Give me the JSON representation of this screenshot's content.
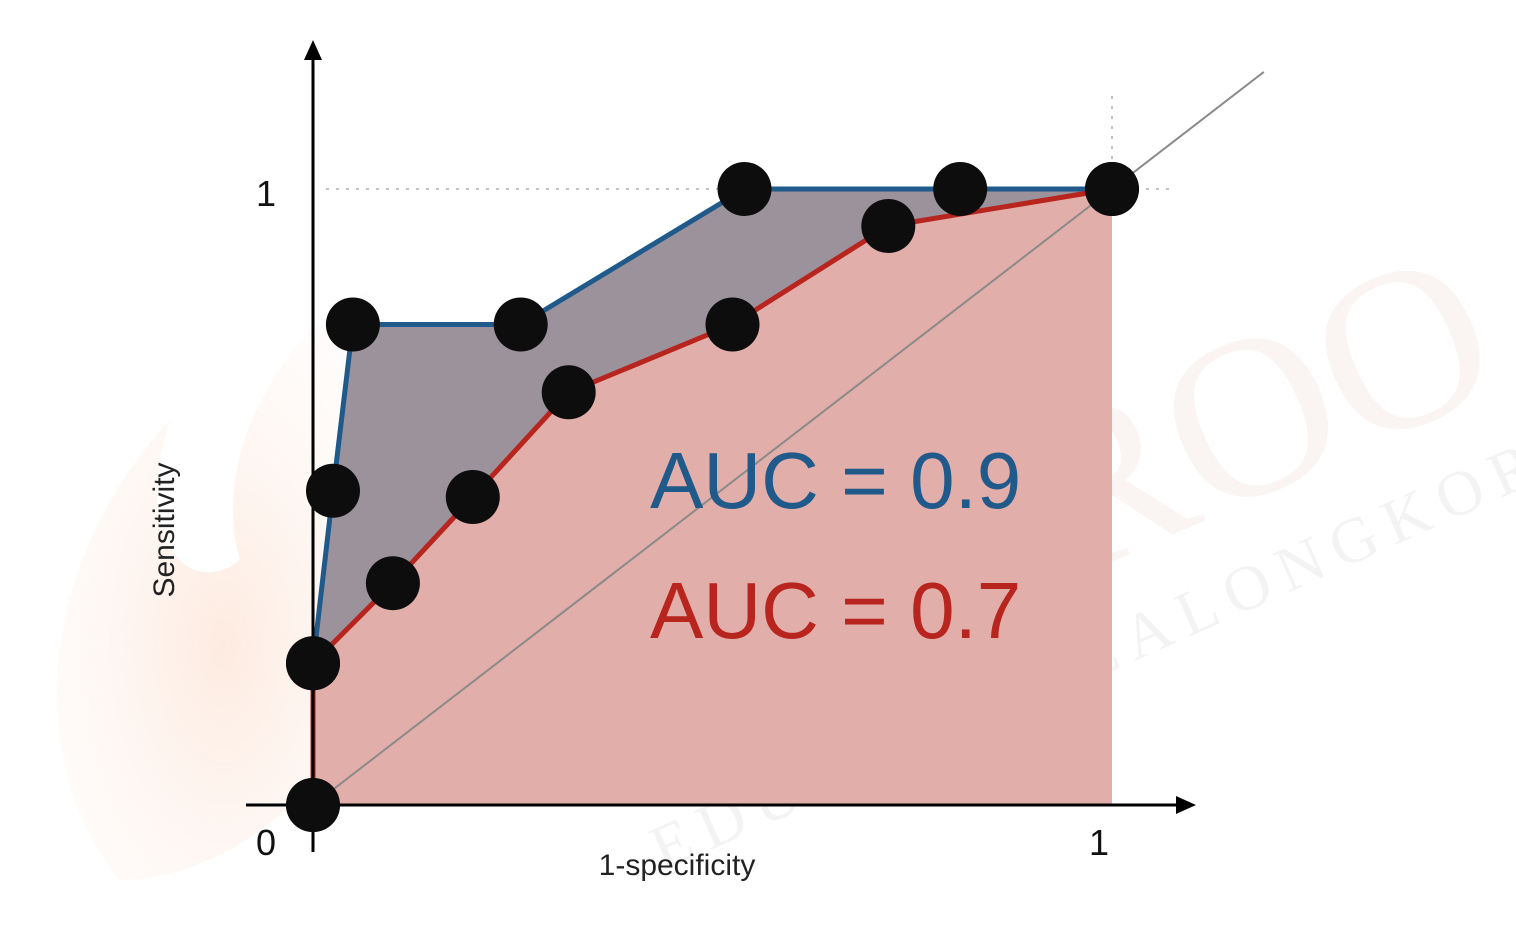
{
  "watermark": {
    "brand": "KRUROO",
    "tagline": "EDU @ CHULALONGKORN"
  },
  "chart_data": {
    "type": "line",
    "xlabel": "1-specificity",
    "ylabel": "Sensitivity",
    "x_ticks": [
      "0",
      "1"
    ],
    "y_ticks": [
      "1"
    ],
    "xlim": [
      0,
      1
    ],
    "ylim": [
      0,
      1
    ],
    "reference_line": "diagonal",
    "grid": false,
    "series": [
      {
        "label": "AUC = 0.9",
        "color": "#1f5a8a",
        "x": [
          0.0,
          0.0,
          0.025,
          0.05,
          0.26,
          0.54,
          0.81,
          1.0
        ],
        "y": [
          0.0,
          0.23,
          0.51,
          0.78,
          0.78,
          1.0,
          1.0,
          1.0
        ]
      },
      {
        "label": "AUC = 0.7",
        "color": "#b8241e",
        "x": [
          0.0,
          0.0,
          0.1,
          0.2,
          0.32,
          0.525,
          0.72,
          1.0
        ],
        "y": [
          0.0,
          0.23,
          0.36,
          0.5,
          0.67,
          0.78,
          0.94,
          1.0
        ]
      }
    ]
  }
}
